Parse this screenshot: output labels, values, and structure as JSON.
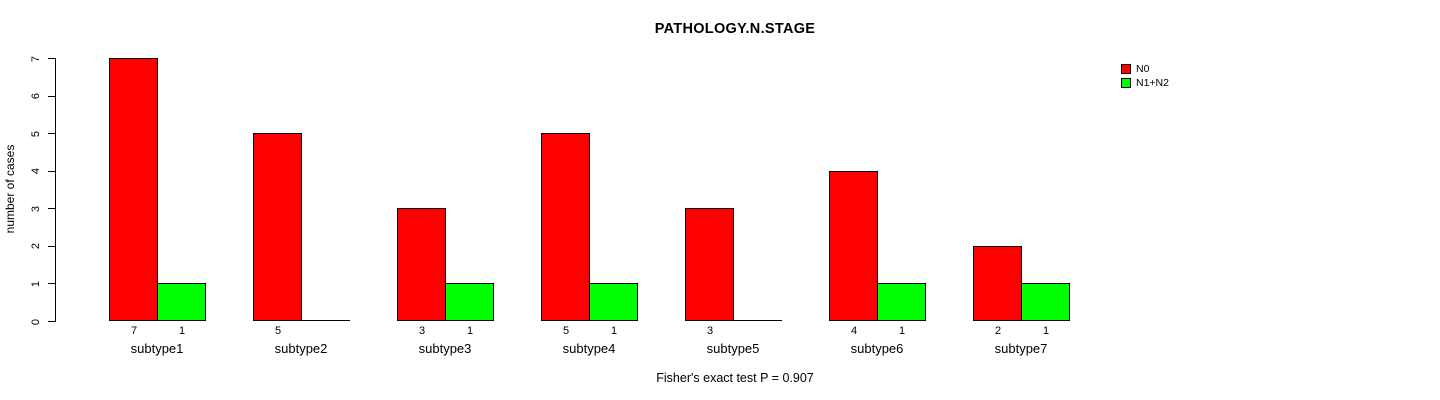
{
  "chart_data": {
    "type": "bar",
    "title": "PATHOLOGY.N.STAGE",
    "xlabel": "",
    "ylabel": "number of cases",
    "categories": [
      "subtype1",
      "subtype2",
      "subtype3",
      "subtype4",
      "subtype5",
      "subtype6",
      "subtype7"
    ],
    "series": [
      {
        "name": "N0",
        "color": "#ff0000",
        "values": [
          7,
          5,
          3,
          5,
          3,
          4,
          2
        ]
      },
      {
        "name": "N1+N2",
        "color": "#00ff00",
        "values": [
          1,
          0,
          1,
          1,
          0,
          1,
          1
        ]
      }
    ],
    "ylim": [
      0,
      7
    ],
    "yticks": [
      0,
      1,
      2,
      3,
      4,
      5,
      6,
      7
    ],
    "grid": false,
    "legend_position": "top-right",
    "bar_border_color": "#000000",
    "annotation": "Fisher's exact test P = 0.907",
    "notes": "zero-value bars drawn as baseline segment with no count label"
  }
}
